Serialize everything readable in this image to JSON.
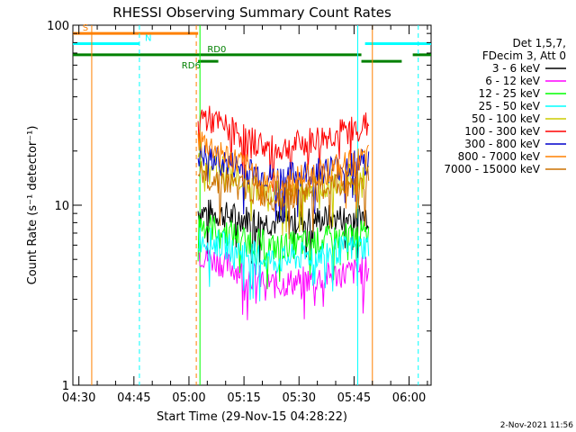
{
  "chart_data": {
    "type": "line",
    "title": "RHESSI Observing Summary Count Rates",
    "xlabel": "Start Time (29-Nov-15 04:28:22)",
    "ylabel": "Count Rate (s⁻¹ detector⁻¹)",
    "yscale": "log",
    "xlim": [
      "04:28:22",
      "06:06:00"
    ],
    "ylim": [
      1,
      100
    ],
    "x_ticks": [
      "04:30",
      "04:45",
      "05:00",
      "05:15",
      "05:30",
      "05:45",
      "06:00"
    ],
    "y_ticks": [
      "1",
      "10",
      "100"
    ],
    "legend_title": [
      "Det 1,5,7,",
      "FDecim 3, Att 0"
    ],
    "legend_position": "right",
    "footer": "2-Nov-2021 11:56",
    "data_window": [
      "05:02:30",
      "05:49:00"
    ],
    "series": [
      {
        "name": "3 - 6 keV",
        "color": "#000000",
        "start": 9.3,
        "mid": 8.0,
        "end": 8.8
      },
      {
        "name": "6 - 12 keV",
        "color": "#ff00ff",
        "start": 5.4,
        "mid": 3.6,
        "end": 4.4
      },
      {
        "name": "12 - 25 keV",
        "color": "#00ff00",
        "start": 8.0,
        "mid": 5.8,
        "end": 7.0
      },
      {
        "name": "25 - 50 keV",
        "color": "#00ffff",
        "start": 6.6,
        "mid": 4.9,
        "end": 6.0
      },
      {
        "name": "50 - 100 keV",
        "color": "#cccc00",
        "start": 18.0,
        "mid": 11.5,
        "end": 15.0
      },
      {
        "name": "100 - 300 keV",
        "color": "#ff0000",
        "start": 32.0,
        "mid": 20.0,
        "end": 28.0
      },
      {
        "name": "300 - 800 keV",
        "color": "#0000cc",
        "start": 19.0,
        "mid": 14.0,
        "end": 17.5
      },
      {
        "name": "800 - 7000 keV",
        "color": "#ff8000",
        "start": 23.0,
        "mid": 13.0,
        "end": 18.0
      },
      {
        "name": "7000 - 15000 keV",
        "color": "#cc7000",
        "start": 15.0,
        "mid": 11.0,
        "end": 14.0
      }
    ],
    "flag_bars": [
      {
        "label": "S",
        "color": "#ff8000",
        "y": 90,
        "segments": [
          [
            "04:28:22",
            "05:02:30"
          ]
        ],
        "label_at": "04:31"
      },
      {
        "label": "N",
        "color": "#00ffff",
        "y": 79,
        "segments": [
          [
            "04:28:22",
            "04:46:30"
          ],
          [
            "05:48:00",
            "06:06:00"
          ]
        ],
        "label_at": "04:48"
      },
      {
        "label": "RD0",
        "color": "#008000",
        "y": 68.5,
        "segments": [
          [
            "04:28:22",
            "05:47:00"
          ],
          [
            "06:01:00",
            "06:06:00"
          ]
        ],
        "label_at": "05:05"
      },
      {
        "label": "RD6",
        "color": "#008000",
        "y": 63,
        "segments": [
          [
            "05:02:30",
            "05:08:00"
          ],
          [
            "05:47:00",
            "05:58:00"
          ]
        ],
        "label_at": "04:58"
      }
    ],
    "vertical_markers": [
      {
        "x": "04:33:30",
        "color": "#ff8000",
        "style": "solid"
      },
      {
        "x": "04:46:30",
        "color": "#00ffff",
        "style": "dashed"
      },
      {
        "x": "05:02:00",
        "color": "#ff8000",
        "style": "dashed"
      },
      {
        "x": "05:03:00",
        "color": "#00ff00",
        "style": "solid"
      },
      {
        "x": "05:46:00",
        "color": "#00ffff",
        "style": "solid"
      },
      {
        "x": "05:50:00",
        "color": "#ff8000",
        "style": "solid"
      },
      {
        "x": "06:02:30",
        "color": "#00ffff",
        "style": "dashed"
      }
    ]
  }
}
